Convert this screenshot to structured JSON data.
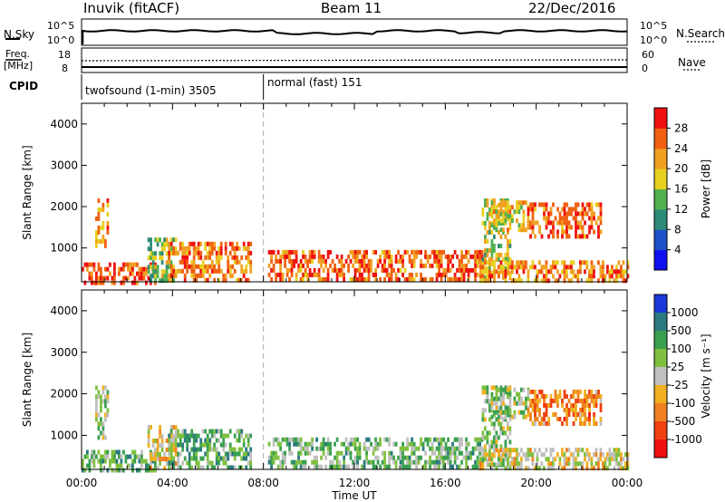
{
  "header": {
    "title_left": "Inuvik (fitACF)",
    "title_mid": "Beam 11",
    "title_right": "22/Dec/2016"
  },
  "panels": {
    "nsky_label": "N.Sky",
    "nsky_ticks": [
      "10^5",
      "10^0"
    ],
    "nsearch_label": "N.Search",
    "nsearch_ticks": [
      "10^5",
      "10^0"
    ],
    "freq_label": "Freq.",
    "freq_unit": "[MHz]",
    "freq_ticks": [
      "18",
      "8"
    ],
    "nave_label": "Nave",
    "nave_ticks": [
      "60",
      "0"
    ],
    "cpid_label": "CPID",
    "cpid_segments": [
      {
        "label": "twofsound (1-min) 3505",
        "start_h": 0,
        "end_h": 8
      },
      {
        "label": "normal (fast) 151",
        "start_h": 8,
        "end_h": 24
      }
    ]
  },
  "chart_data": [
    {
      "type": "heatmap",
      "name": "power",
      "ylabel": "Slant Range [km]",
      "xlabel": "",
      "x_ticks": [
        "00:00",
        "04:00",
        "08:00",
        "12:00",
        "16:00",
        "20:00",
        "00:00"
      ],
      "x_range_hours": [
        0,
        24
      ],
      "y_ticks": [
        1000,
        2000,
        3000,
        4000
      ],
      "y_range_km": [
        180,
        4500
      ],
      "colorbar_label": "Power [dB]",
      "colorbar_ticks": [
        4,
        8,
        12,
        16,
        20,
        24,
        28
      ],
      "colorbar_colors": [
        "#1010f0",
        "#1e50c8",
        "#2e8a78",
        "#50b050",
        "#e8d020",
        "#f0a020",
        "#f06010",
        "#f01010"
      ],
      "echo_regions": [
        {
          "t0": 0.0,
          "t1": 3.2,
          "r0": 200,
          "r1": 650,
          "level": 0.9
        },
        {
          "t0": 0.6,
          "t1": 1.1,
          "r0": 1000,
          "r1": 2200,
          "level": 0.75
        },
        {
          "t0": 2.9,
          "t1": 4.1,
          "r0": 250,
          "r1": 1250,
          "level": 0.45
        },
        {
          "t0": 3.8,
          "t1": 7.4,
          "r0": 200,
          "r1": 1150,
          "level": 0.8
        },
        {
          "t0": 8.2,
          "t1": 17.6,
          "r0": 200,
          "r1": 950,
          "level": 0.85
        },
        {
          "t0": 17.6,
          "t1": 18.8,
          "r0": 300,
          "r1": 2200,
          "level": 0.55
        },
        {
          "t0": 18.0,
          "t1": 19.6,
          "r0": 1450,
          "r1": 2150,
          "level": 0.6
        },
        {
          "t0": 19.6,
          "t1": 22.8,
          "r0": 1250,
          "r1": 2100,
          "level": 0.85
        },
        {
          "t0": 17.5,
          "t1": 24.0,
          "r0": 200,
          "r1": 700,
          "level": 0.75
        }
      ]
    },
    {
      "type": "heatmap",
      "name": "velocity",
      "ylabel": "Slant Range [km]",
      "xlabel": "Time UT",
      "x_ticks": [
        "00:00",
        "04:00",
        "08:00",
        "12:00",
        "16:00",
        "20:00",
        "00:00"
      ],
      "x_range_hours": [
        0,
        24
      ],
      "y_ticks": [
        1000,
        2000,
        3000,
        4000
      ],
      "y_range_km": [
        180,
        4500
      ],
      "colorbar_label": "Velocity [m s⁻¹]",
      "colorbar_ticks": [
        "1000",
        "500",
        "100",
        "25",
        "-25",
        "-100",
        "-500",
        "-1000"
      ],
      "colorbar_colors": [
        "#1a3ad8",
        "#2a7a80",
        "#3aa050",
        "#80c040",
        "#c0c0c0",
        "#f0b020",
        "#f08020",
        "#f04010",
        "#f01010"
      ],
      "echo_regions": [
        {
          "t0": 0.0,
          "t1": 3.2,
          "r0": 200,
          "r1": 650,
          "level": 0.3
        },
        {
          "t0": 0.6,
          "t1": 1.1,
          "r0": 1000,
          "r1": 2200,
          "level": 0.45
        },
        {
          "t0": 2.9,
          "t1": 4.1,
          "r0": 250,
          "r1": 1250,
          "level": 0.6
        },
        {
          "t0": 3.8,
          "t1": 7.4,
          "r0": 200,
          "r1": 1150,
          "level": 0.3
        },
        {
          "t0": 8.2,
          "t1": 17.6,
          "r0": 200,
          "r1": 950,
          "level": 0.35
        },
        {
          "t0": 17.6,
          "t1": 18.8,
          "r0": 300,
          "r1": 2200,
          "level": 0.4
        },
        {
          "t0": 18.0,
          "t1": 19.6,
          "r0": 1450,
          "r1": 2150,
          "level": 0.4
        },
        {
          "t0": 19.6,
          "t1": 22.8,
          "r0": 1250,
          "r1": 2100,
          "level": 0.75
        },
        {
          "t0": 17.5,
          "t1": 24.0,
          "r0": 200,
          "r1": 700,
          "level": 0.55
        }
      ]
    }
  ]
}
